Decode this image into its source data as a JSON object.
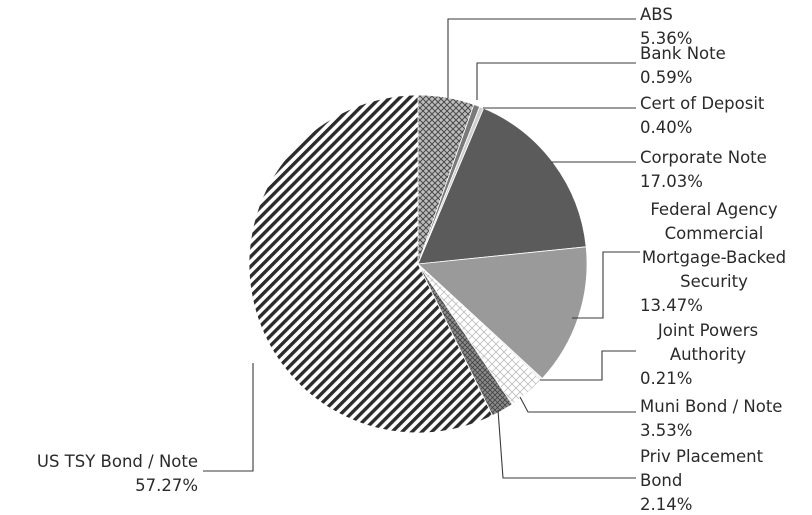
{
  "chart_data": {
    "type": "pie",
    "title": "",
    "start_angle_deg": 0,
    "direction": "clockwise",
    "series": [
      {
        "name": "ABS",
        "label_lines": [
          "ABS"
        ],
        "value": 5.36,
        "value_label": "5.36%",
        "fill": "crosshatch"
      },
      {
        "name": "Bank Note",
        "label_lines": [
          "Bank Note"
        ],
        "value": 0.59,
        "value_label": "0.59%",
        "fill": "#7a7a7a"
      },
      {
        "name": "Cert of Deposit",
        "label_lines": [
          "Cert of Deposit"
        ],
        "value": 0.4,
        "value_label": "0.40%",
        "fill": "#d0d0d0"
      },
      {
        "name": "Corporate Note",
        "label_lines": [
          "Corporate Note"
        ],
        "value": 17.03,
        "value_label": "17.03%",
        "fill": "#5b5b5b"
      },
      {
        "name": "Federal Agency Commercial Mortgage-Backed Security",
        "label_lines": [
          "Federal Agency",
          "Commercial",
          "Mortgage-Backed",
          "Security"
        ],
        "value": 13.47,
        "value_label": "13.47%",
        "fill": "#9a9a9a"
      },
      {
        "name": "Joint Powers Authority",
        "label_lines": [
          "Joint Powers",
          "Authority"
        ],
        "value": 0.21,
        "value_label": "0.21%",
        "fill": "#ededed"
      },
      {
        "name": "Muni Bond / Note",
        "label_lines": [
          "Muni Bond / Note"
        ],
        "value": 3.53,
        "value_label": "3.53%",
        "fill": "whitehatch"
      },
      {
        "name": "Priv Placement Bond",
        "label_lines": [
          "Priv Placement",
          "Bond"
        ],
        "value": 2.14,
        "value_label": "2.14%",
        "fill": "darkhatch"
      },
      {
        "name": "US TSY Bond / Note",
        "label_lines": [
          "US TSY Bond / Note"
        ],
        "value": 57.27,
        "value_label": "57.27%",
        "fill": "diagonal"
      }
    ]
  }
}
